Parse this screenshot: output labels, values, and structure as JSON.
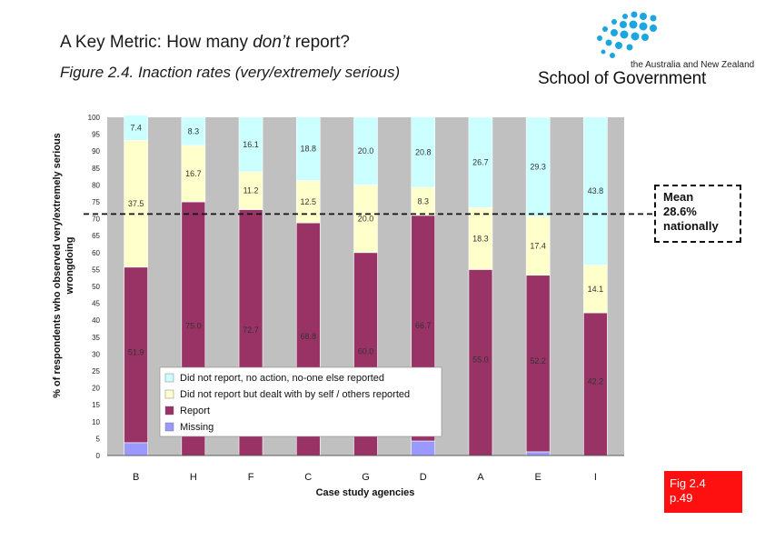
{
  "header": {
    "title_prefix": "A Key Metric: How many ",
    "title_emph": "don’t",
    "title_suffix": " report?",
    "subtitle": "Figure 2.4. Inaction rates (very/extremely serious)"
  },
  "logo": {
    "small_text": "the Australia and New Zealand",
    "big_text": "School of Government"
  },
  "callout": {
    "line1": "Mean",
    "line2": "28.6%",
    "line3": "nationally",
    "mean_value": 28.6
  },
  "fig_ref": {
    "line1": "Fig 2.4",
    "line2": "p.49"
  },
  "colors": {
    "not_report_no_action": "#ccffff",
    "dealt_with_self": "#ffffcc",
    "report": "#993366",
    "missing": "#9999ff",
    "plot_bg": "#c0c0c0",
    "mean_line": "#111111"
  },
  "chart_data": {
    "type": "bar",
    "stacked": true,
    "title": "Figure 2.4. Inaction rates (very/extremely serious)",
    "xlabel": "Case study agencies",
    "ylabel_line1": "% of respondents who observed very/extremely serious",
    "ylabel_line2": "wrongdoing",
    "ylim": [
      0,
      100
    ],
    "yticks": [
      0,
      5,
      10,
      15,
      20,
      25,
      30,
      35,
      40,
      45,
      50,
      55,
      60,
      65,
      70,
      75,
      80,
      85,
      90,
      95,
      100
    ],
    "categories": [
      "B",
      "H",
      "F",
      "C",
      "G",
      "D",
      "A",
      "E",
      "I"
    ],
    "mean_line_value": 71.4,
    "series": [
      {
        "name": "Missing",
        "color_key": "missing",
        "values": [
          3.8,
          0,
          0,
          0,
          0,
          4.3,
          0,
          1.1,
          0
        ]
      },
      {
        "name": "Report",
        "color_key": "report",
        "values": [
          51.9,
          75.0,
          72.7,
          68.8,
          60.0,
          66.7,
          55.0,
          52.2,
          42.2
        ]
      },
      {
        "name": "Did not report but dealt with by self / others reported",
        "color_key": "dealt_with_self",
        "values": [
          37.5,
          16.7,
          11.2,
          12.5,
          20.0,
          8.3,
          18.3,
          17.4,
          14.1
        ]
      },
      {
        "name": "Did not report, no action, no-one else reported",
        "color_key": "not_report_no_action",
        "values": [
          7.4,
          8.3,
          16.1,
          18.8,
          20.0,
          20.8,
          26.7,
          29.3,
          43.8
        ]
      }
    ],
    "value_labels": {
      "Report": [
        "51.9",
        "75.0",
        "72.7",
        "68.8",
        "60.0",
        "66.7",
        "55.0",
        "52.2",
        "42.2"
      ],
      "Did not report but dealt with by self / others reported": [
        "37.5",
        "16.7",
        "11.2",
        "12.5",
        "20.0",
        "8.3",
        "18.3",
        "17.4",
        "14.1"
      ],
      "Did not report, no action, no-one else reported": [
        "7.4",
        "8.3",
        "16.1",
        "18.8",
        "20.0",
        "20.8",
        "26.7",
        "29.3",
        "43.8"
      ]
    },
    "legend": {
      "placement": "inside-bottom-left",
      "entries": [
        {
          "label": "Did not report, no action, no-one else reported",
          "color_key": "not_report_no_action"
        },
        {
          "label": "Did not report but dealt with by self / others reported",
          "color_key": "dealt_with_self"
        },
        {
          "label": "Report",
          "color_key": "report"
        },
        {
          "label": "Missing",
          "color_key": "missing"
        }
      ]
    }
  }
}
